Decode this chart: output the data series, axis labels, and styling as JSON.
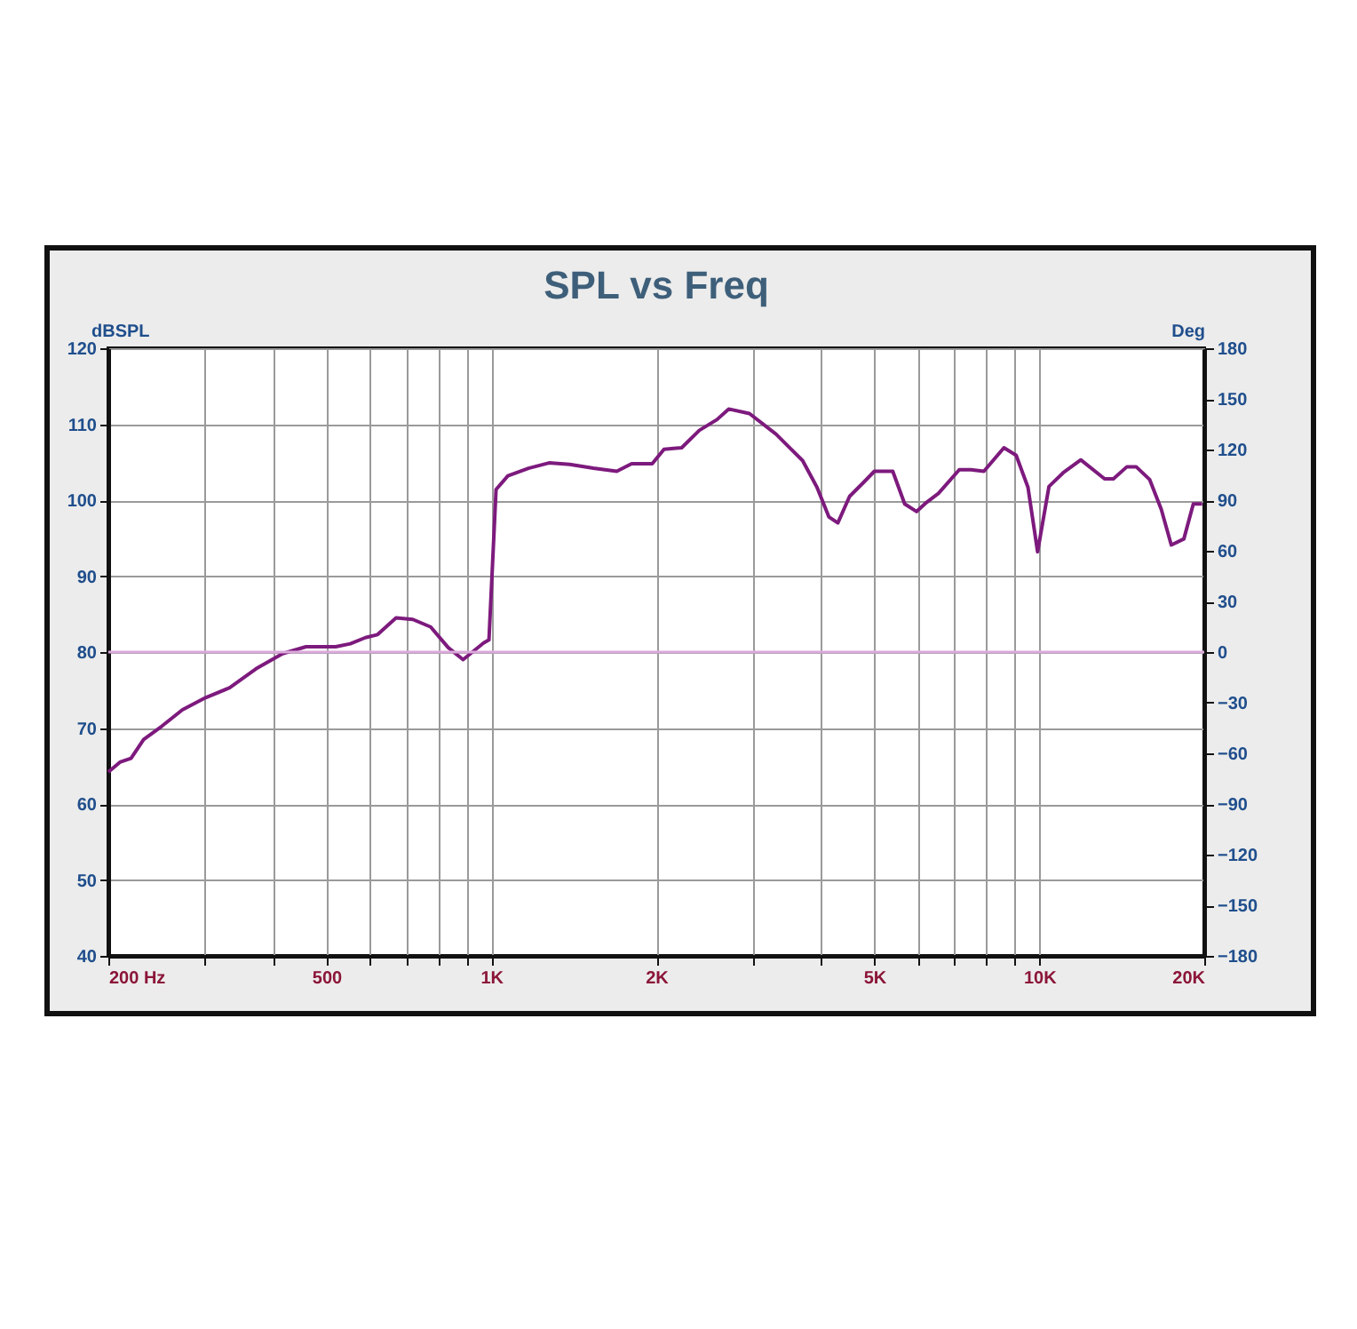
{
  "chart_data": {
    "type": "line",
    "title": "SPL vs Freq",
    "ylabel": "dBSPL",
    "y2label": "Deg",
    "log": "x",
    "grid": true,
    "legend": false,
    "xlim": [
      200,
      20000
    ],
    "ylim": [
      40,
      120
    ],
    "y2lim": [
      -180,
      180
    ],
    "xticks": [
      {
        "value": 200,
        "label": "200 Hz"
      },
      {
        "value": 300,
        "label": null
      },
      {
        "value": 400,
        "label": null
      },
      {
        "value": 500,
        "label": "500"
      },
      {
        "value": 600,
        "label": null
      },
      {
        "value": 700,
        "label": null
      },
      {
        "value": 800,
        "label": null
      },
      {
        "value": 900,
        "label": null
      },
      {
        "value": 1000,
        "label": "1K"
      },
      {
        "value": 2000,
        "label": "2K"
      },
      {
        "value": 3000,
        "label": null
      },
      {
        "value": 4000,
        "label": null
      },
      {
        "value": 5000,
        "label": "5K"
      },
      {
        "value": 6000,
        "label": null
      },
      {
        "value": 7000,
        "label": null
      },
      {
        "value": 8000,
        "label": null
      },
      {
        "value": 9000,
        "label": null
      },
      {
        "value": 10000,
        "label": "10K"
      },
      {
        "value": 20000,
        "label": "20K"
      }
    ],
    "yticks": [
      40,
      50,
      60,
      70,
      80,
      90,
      100,
      110,
      120
    ],
    "y2ticks": [
      -180,
      -150,
      -120,
      -90,
      -60,
      -30,
      0,
      30,
      60,
      90,
      120,
      150,
      180
    ],
    "ref_lines": [
      {
        "axis": "y2",
        "value": 0,
        "color": "#dba9db"
      }
    ],
    "series": [
      {
        "color": "#7d1a7d",
        "x": [
          200,
          210,
          220,
          232,
          250,
          273,
          301,
          333,
          372,
          416,
          459,
          520,
          553,
          589,
          620,
          670,
          719,
          775,
          834,
          888,
          968,
          990,
          1020,
          1072,
          1169,
          1274,
          1390,
          1535,
          1694,
          1803,
          1966,
          2066,
          2225,
          2397,
          2580,
          2711,
          2958,
          3307,
          3699,
          3929,
          4130,
          4289,
          4506,
          4788,
          5000,
          5402,
          5680,
          5972,
          6225,
          6546,
          7144,
          7502,
          7923,
          8620,
          9073,
          9535,
          9929,
          10415,
          11053,
          11906,
          13155,
          13655,
          14452,
          15024,
          15904,
          16694,
          17413,
          18359,
          19102,
          19825
        ],
        "values": [
          64.2,
          65.5,
          66,
          68.5,
          70.2,
          72.4,
          74,
          75.3,
          77.8,
          79.8,
          80.7,
          80.7,
          81.1,
          81.9,
          82.3,
          84.5,
          84.3,
          83.3,
          80.6,
          79,
          81.2,
          81.6,
          101.4,
          103.2,
          104.2,
          104.9,
          104.7,
          104.2,
          103.8,
          104.8,
          104.8,
          106.7,
          106.9,
          109.2,
          110.6,
          112,
          111.4,
          108.7,
          105.2,
          101.7,
          97.8,
          97,
          100.5,
          102.4,
          103.8,
          103.8,
          99.5,
          98.5,
          99.7,
          100.9,
          104,
          104,
          103.8,
          106.9,
          105.9,
          101.7,
          93.2,
          101.8,
          103.6,
          105.3,
          102.8,
          102.8,
          104.4,
          104.4,
          102.7,
          98.8,
          94.1,
          94.9,
          99.5,
          99.5
        ]
      }
    ]
  }
}
